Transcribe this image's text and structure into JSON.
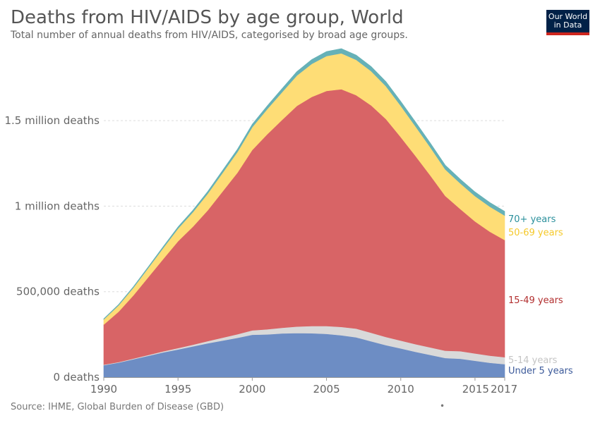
{
  "header": {
    "title": "Deaths from HIV/AIDS by age group, World",
    "subtitle": "Total number of annual deaths from HIV/AIDS, categorised by broad age groups.",
    "logo_line1": "Our World",
    "logo_line2": "in Data"
  },
  "footer": {
    "source": "Source: IHME, Global Burden of Disease (GBD)",
    "dot": "•"
  },
  "chart_data": {
    "type": "area",
    "stacked": true,
    "x": [
      1990,
      1991,
      1992,
      1993,
      1994,
      1995,
      1996,
      1997,
      1998,
      1999,
      2000,
      2001,
      2002,
      2003,
      2004,
      2005,
      2006,
      2007,
      2008,
      2009,
      2010,
      2011,
      2012,
      2013,
      2014,
      2015,
      2016,
      2017
    ],
    "ylim": [
      0,
      1950000
    ],
    "y_ticks": [
      {
        "value": 0,
        "label": "0 deaths"
      },
      {
        "value": 500000,
        "label": "500,000 deaths"
      },
      {
        "value": 1000000,
        "label": "1 million deaths"
      },
      {
        "value": 1500000,
        "label": "1.5 million deaths"
      }
    ],
    "x_ticks": [
      {
        "value": 1990,
        "label": "1990"
      },
      {
        "value": 1995,
        "label": "1995"
      },
      {
        "value": 2000,
        "label": "2000"
      },
      {
        "value": 2005,
        "label": "2005"
      },
      {
        "value": 2010,
        "label": "2010"
      },
      {
        "value": 2015,
        "label": "2015"
      },
      {
        "value": 2017,
        "label": "2017"
      }
    ],
    "grid": true,
    "legend_position": "right (inline labels)",
    "series": [
      {
        "name": "Under 5 years",
        "color": "#6d8dc4",
        "label_color": "#3c5a9a",
        "values": [
          70000,
          85000,
          105000,
          125000,
          145000,
          162000,
          180000,
          198000,
          214000,
          230000,
          248000,
          250000,
          256000,
          258000,
          257000,
          253000,
          245000,
          233000,
          210000,
          187000,
          168000,
          148000,
          130000,
          112000,
          108000,
          96000,
          84000,
          76000
        ]
      },
      {
        "name": "5-14 years",
        "color": "#d9d9d9",
        "label_color": "#c4c4c4",
        "values": [
          3000,
          3500,
          4000,
          5000,
          6000,
          8000,
          10000,
          13000,
          17000,
          21000,
          26000,
          30000,
          33000,
          38000,
          42000,
          46000,
          49000,
          51000,
          50000,
          48000,
          46000,
          45000,
          44000,
          43000,
          44000,
          43000,
          42000,
          41000
        ]
      },
      {
        "name": "15-49 years",
        "color": "#d86466",
        "label_color": "#b22f2f",
        "values": [
          235000,
          295000,
          370000,
          455000,
          540000,
          625000,
          690000,
          765000,
          855000,
          945000,
          1055000,
          1140000,
          1215000,
          1290000,
          1340000,
          1375000,
          1390000,
          1365000,
          1330000,
          1275000,
          1190000,
          1100000,
          1005000,
          905000,
          832000,
          772000,
          725000,
          685000
        ]
      },
      {
        "name": "50-69 years",
        "color": "#fedd76",
        "label_color": "#f5c92a",
        "values": [
          30000,
          37000,
          45000,
          54000,
          64000,
          74000,
          85000,
          97000,
          109000,
          121000,
          133000,
          147000,
          162000,
          178000,
          193000,
          204000,
          210000,
          207000,
          200000,
          192000,
          183000,
          173000,
          164000,
          155000,
          150000,
          148000,
          146000,
          143000
        ]
      },
      {
        "name": "70+ years",
        "color": "#66b1b7",
        "label_color": "#2b909c",
        "values": [
          4000,
          5000,
          6000,
          7000,
          8500,
          10000,
          11500,
          13000,
          14500,
          16000,
          17500,
          19000,
          21000,
          23000,
          25000,
          26500,
          27500,
          27500,
          27000,
          26500,
          26000,
          25500,
          25000,
          24500,
          24500,
          24500,
          24500,
          24500
        ]
      }
    ]
  }
}
